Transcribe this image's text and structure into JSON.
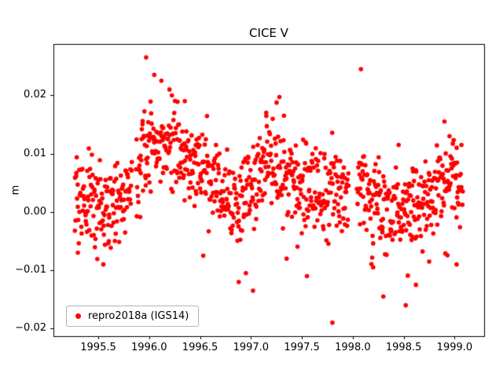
{
  "chart_data": {
    "type": "scatter",
    "title": "CICE V",
    "xlabel": "",
    "ylabel": "m",
    "xlim": [
      1995.06,
      1999.29
    ],
    "ylim": [
      -0.0213,
      0.0288
    ],
    "grid": false,
    "xticks": {
      "values": [
        1995.5,
        1996.0,
        1996.5,
        1997.0,
        1997.5,
        1998.0,
        1998.5,
        1999.0
      ],
      "labels": [
        "1995.5",
        "1996.0",
        "1996.5",
        "1997.0",
        "1997.5",
        "1998.0",
        "1998.5",
        "1999.0"
      ]
    },
    "yticks": {
      "values": [
        -0.02,
        -0.01,
        0.0,
        0.01,
        0.02
      ],
      "labels": [
        "−0.02",
        "−0.01",
        "0.00",
        "0.01",
        "0.02"
      ]
    },
    "legend": {
      "label": "repro2018a (IGS14)",
      "marker_color": "#ff0000",
      "location": "lower left"
    },
    "series": {
      "name": "repro2018a (IGS14)",
      "color": "#ff0000",
      "marker": "o",
      "marker_radius": 2.8,
      "n_points": 1000,
      "x_start": 1995.27,
      "x_end": 1999.08,
      "seed": 1234567,
      "noise_sd": 0.0037,
      "tail_prob": 0.07,
      "tail_sd": 0.0045,
      "x_jitter": 0.004,
      "gaps": [
        [
          1995.83,
          1995.87
        ],
        [
          1997.96,
          1998.04
        ]
      ],
      "mean_profile": [
        [
          1995.27,
          0.003
        ],
        [
          1995.45,
          0.002
        ],
        [
          1995.6,
          0.0
        ],
        [
          1995.75,
          0.003
        ],
        [
          1995.9,
          0.007
        ],
        [
          1996.0,
          0.012
        ],
        [
          1996.2,
          0.011
        ],
        [
          1996.35,
          0.009
        ],
        [
          1996.5,
          0.008
        ],
        [
          1996.65,
          0.005
        ],
        [
          1996.8,
          0.003
        ],
        [
          1996.95,
          0.003
        ],
        [
          1997.1,
          0.007
        ],
        [
          1997.25,
          0.007
        ],
        [
          1997.4,
          0.005
        ],
        [
          1997.55,
          0.004
        ],
        [
          1997.7,
          0.003
        ],
        [
          1997.85,
          0.003
        ],
        [
          1998.0,
          0.004
        ],
        [
          1998.1,
          0.005
        ],
        [
          1998.25,
          0.001
        ],
        [
          1998.4,
          -0.001
        ],
        [
          1998.55,
          0.0
        ],
        [
          1998.7,
          0.002
        ],
        [
          1998.85,
          0.004
        ],
        [
          1999.0,
          0.005
        ],
        [
          1999.08,
          0.005
        ]
      ],
      "outliers": [
        [
          1995.97,
          0.0265
        ],
        [
          1996.05,
          0.0235
        ],
        [
          1996.12,
          0.0225
        ],
        [
          1996.2,
          0.021
        ],
        [
          1998.08,
          0.0245
        ],
        [
          1996.35,
          0.019
        ],
        [
          1997.15,
          0.017
        ],
        [
          1998.45,
          0.0115
        ],
        [
          1998.9,
          0.0155
        ],
        [
          1999.02,
          0.011
        ],
        [
          1997.8,
          -0.019
        ],
        [
          1997.02,
          -0.0135
        ],
        [
          1996.88,
          -0.012
        ],
        [
          1996.95,
          -0.0105
        ],
        [
          1998.3,
          -0.0145
        ],
        [
          1998.52,
          -0.016
        ],
        [
          1998.62,
          -0.0125
        ],
        [
          1997.55,
          -0.011
        ],
        [
          1997.35,
          -0.008
        ],
        [
          1999.02,
          -0.009
        ],
        [
          1995.3,
          -0.007
        ],
        [
          1995.55,
          -0.009
        ],
        [
          1998.2,
          -0.0095
        ],
        [
          1998.75,
          -0.0085
        ]
      ]
    }
  }
}
